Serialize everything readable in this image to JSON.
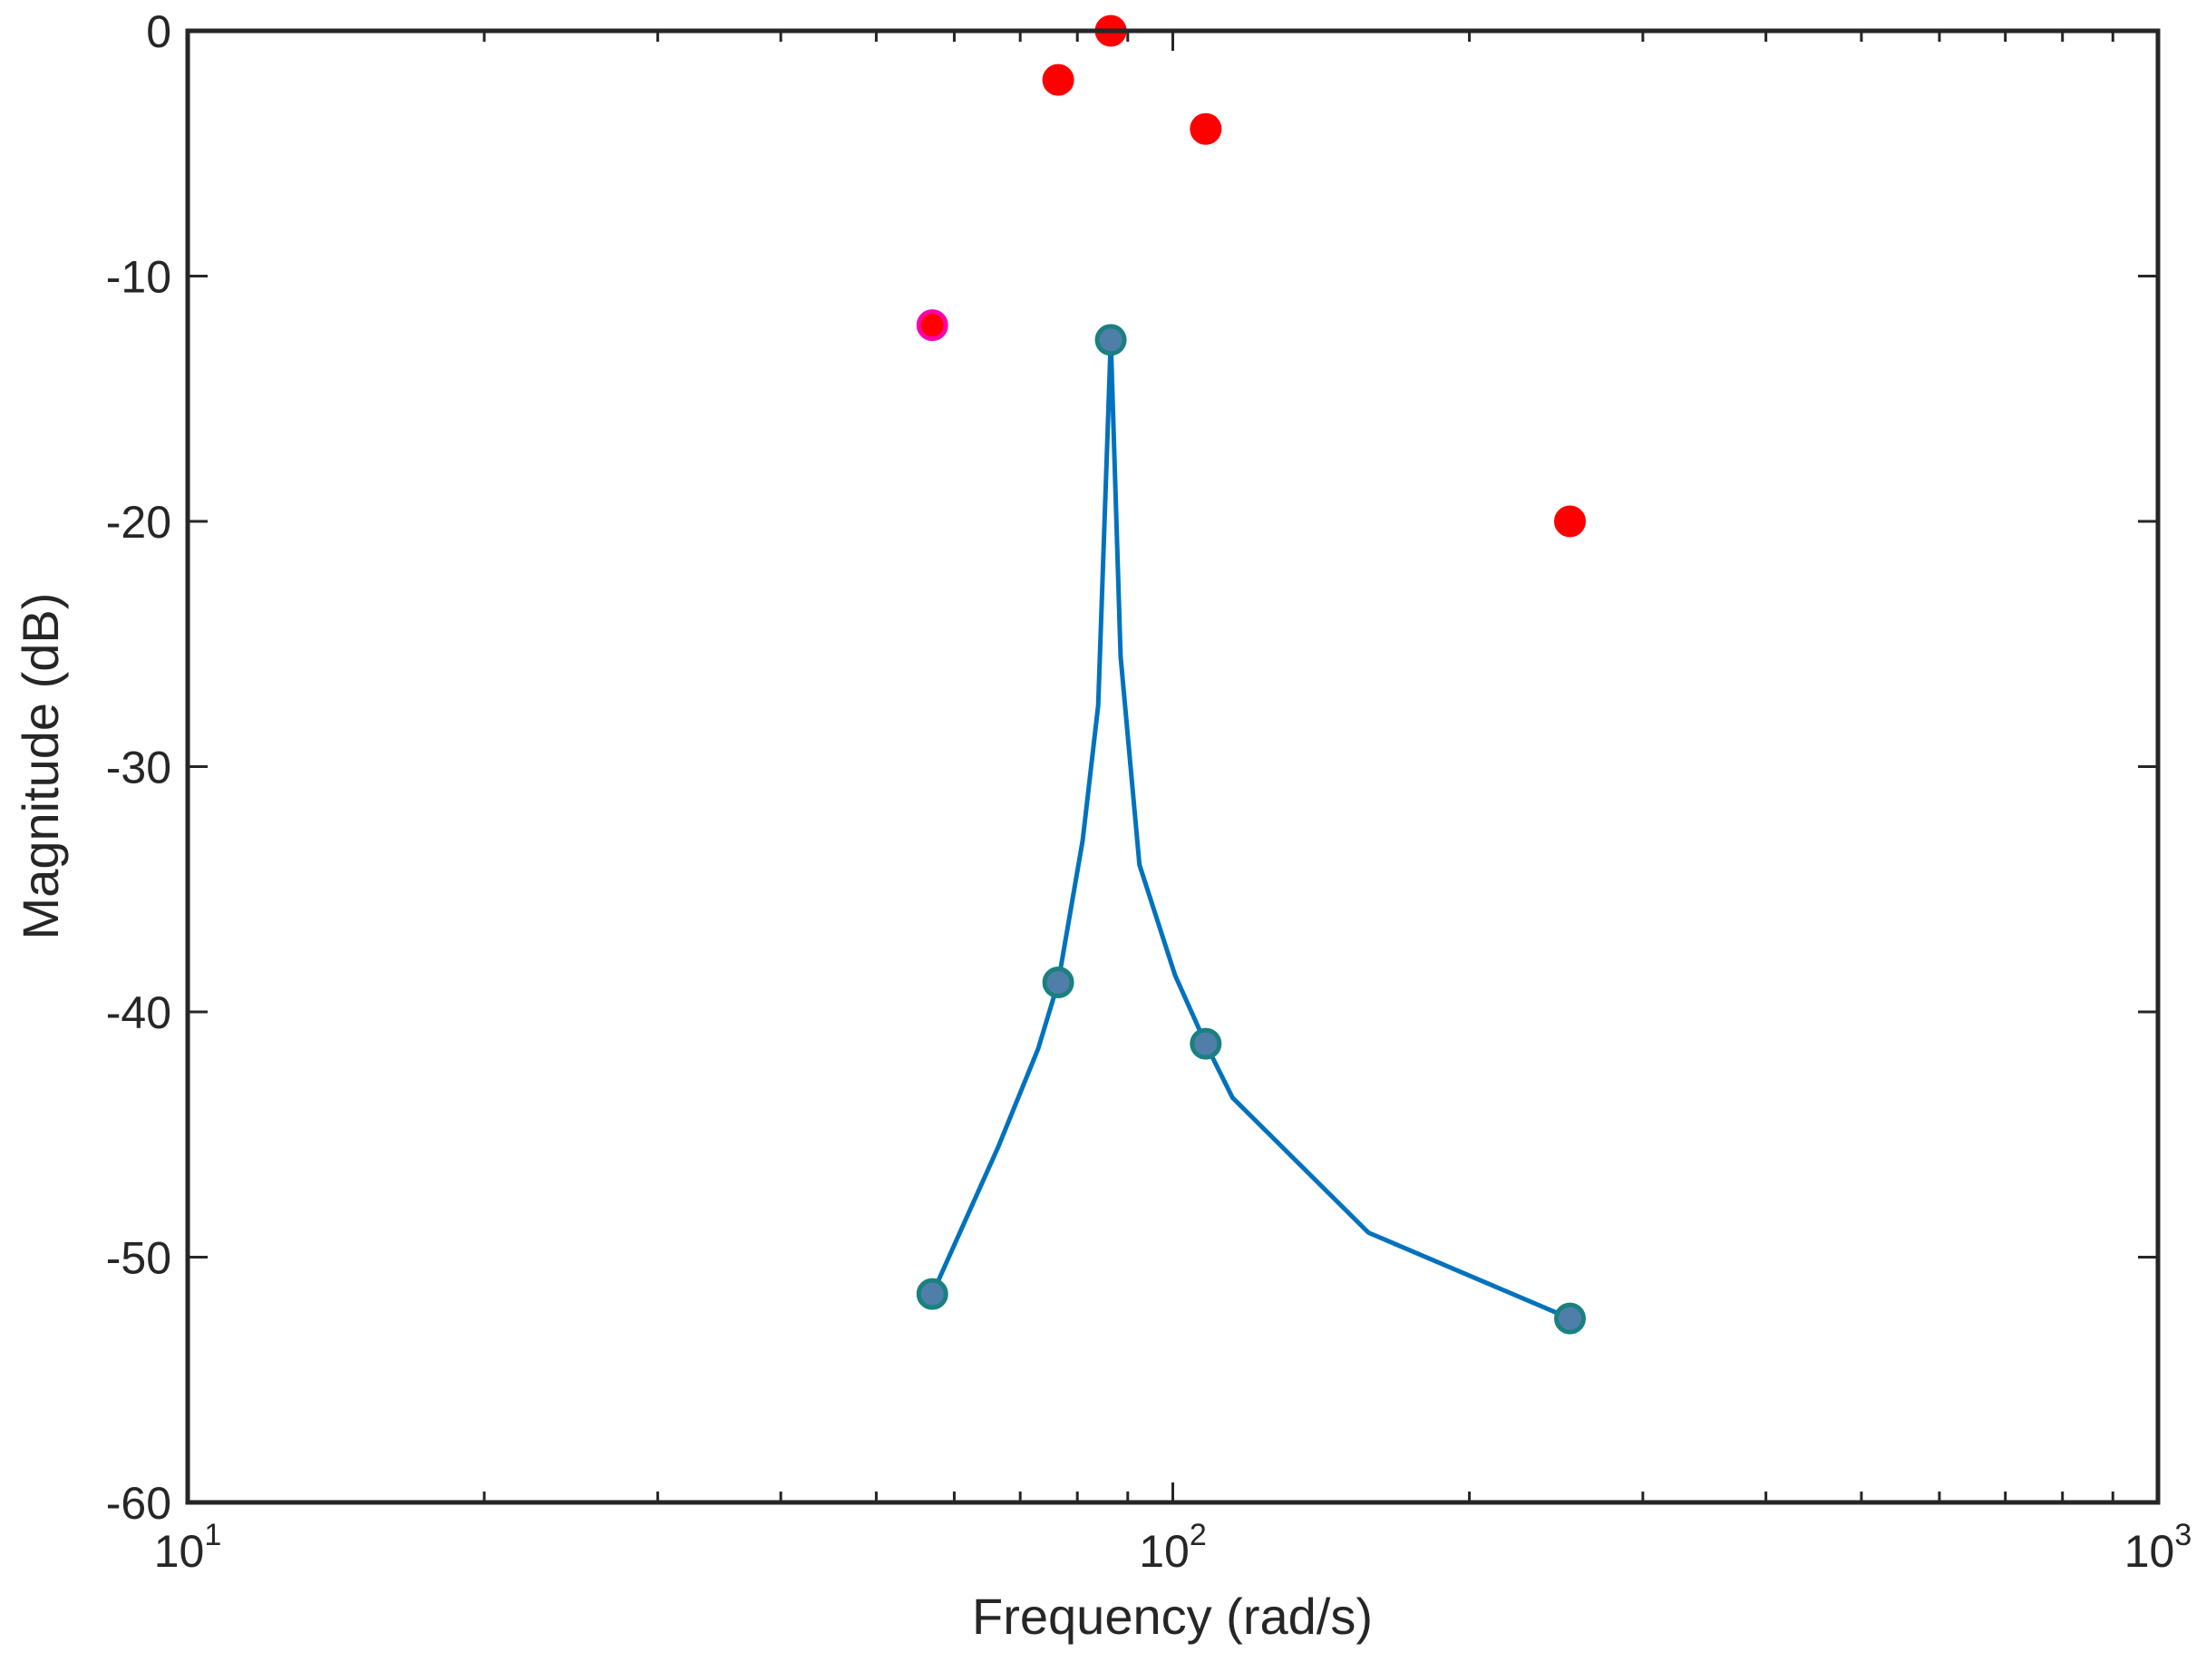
{
  "chart_data": {
    "type": "line",
    "xscale": "log",
    "xlim": [
      10,
      1000
    ],
    "ylim": [
      -60,
      0
    ],
    "xlabel": "Frequency (rad/s)",
    "ylabel": "Magnitude (dB)",
    "xticks": [
      {
        "value": 10,
        "base": "10",
        "exp": "1"
      },
      {
        "value": 100,
        "base": "10",
        "exp": "2"
      },
      {
        "value": 1000,
        "base": "10",
        "exp": "3"
      }
    ],
    "yticks": [
      0,
      -10,
      -20,
      -30,
      -40,
      -50,
      -60
    ],
    "grid": false,
    "box": true,
    "series": [
      {
        "role": "curve",
        "color": "#0072BD",
        "points": [
          [
            57.0,
            -51.5
          ],
          [
            66.5,
            -45.5
          ],
          [
            73.0,
            -41.5
          ],
          [
            76.5,
            -38.8
          ],
          [
            81.0,
            -33.0
          ],
          [
            84.0,
            -27.5
          ],
          [
            86.5,
            -12.6
          ],
          [
            88.5,
            -25.5
          ],
          [
            92.5,
            -34.0
          ],
          [
            100.5,
            -38.5
          ],
          [
            108.0,
            -41.3
          ],
          [
            115.0,
            -43.5
          ],
          [
            158.0,
            -49.0
          ],
          [
            253.0,
            -52.5
          ]
        ]
      },
      {
        "role": "markers",
        "fill": "#4F7FA8",
        "edge": "#1A8080",
        "points": [
          [
            57.0,
            -51.5
          ],
          [
            76.5,
            -38.8
          ],
          [
            86.5,
            -12.6
          ],
          [
            108.0,
            -41.3
          ],
          [
            253.0,
            -52.5
          ]
        ]
      },
      {
        "role": "markers",
        "fill": "#FF0000",
        "edge": "#FF0000",
        "points": [
          [
            57.0,
            -12.0
          ],
          [
            76.5,
            -2.0
          ],
          [
            86.5,
            0.0
          ],
          [
            108.0,
            -4.0
          ],
          [
            253.0,
            -20.0
          ]
        ],
        "highlight_edge": "#FF00AA",
        "highlight_index": 0
      }
    ]
  }
}
